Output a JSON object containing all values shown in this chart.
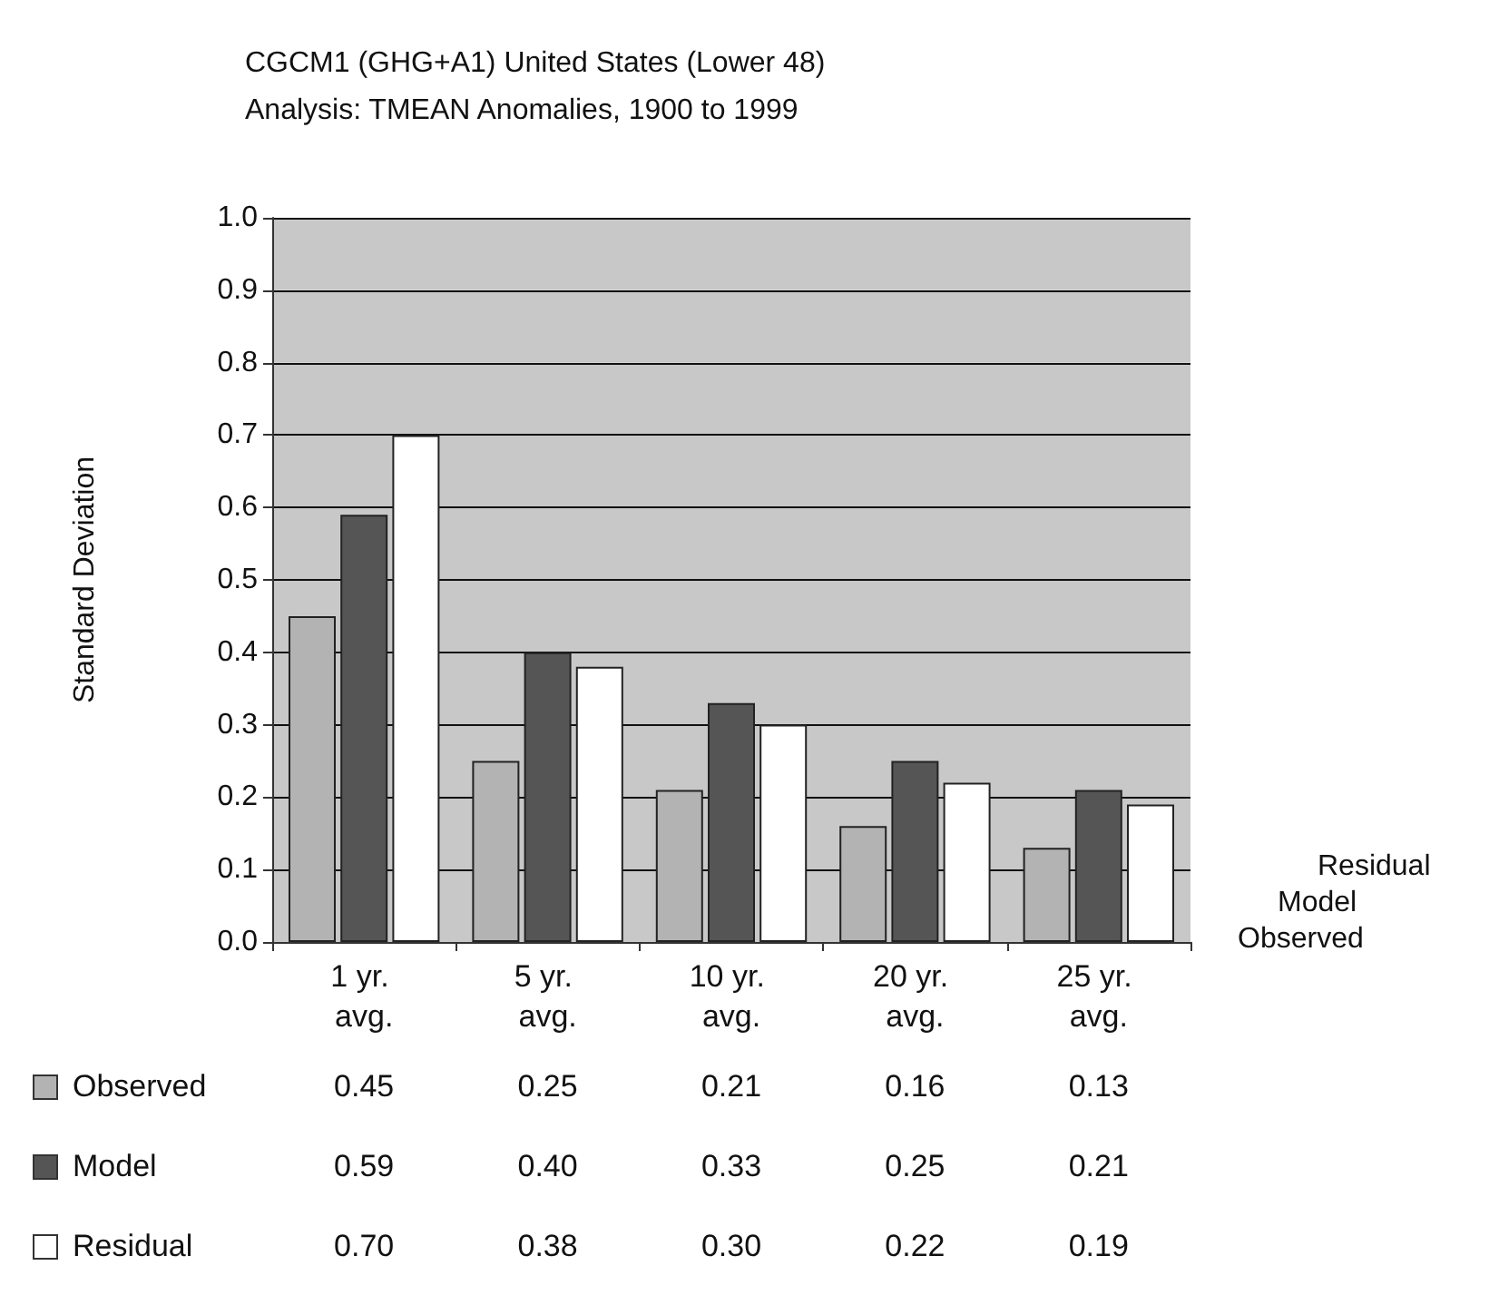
{
  "chart_data": {
    "type": "bar",
    "title": "CGCM1 (GHG+A1) United States (Lower 48)",
    "subtitle": "Analysis: TMEAN Anomalies, 1900 to 1999",
    "ylabel": "Standard Deviation",
    "categories": [
      "1 yr. avg.",
      "5 yr. avg.",
      "10 yr. avg.",
      "20 yr. avg.",
      "25 yr. avg."
    ],
    "series": [
      {
        "name": "Observed",
        "color": "#b3b3b3",
        "values": [
          0.45,
          0.25,
          0.21,
          0.16,
          0.13
        ],
        "value_labels": [
          "0.45",
          "0.25",
          "0.21",
          "0.16",
          "0.13"
        ]
      },
      {
        "name": "Model",
        "color": "#555555",
        "values": [
          0.59,
          0.4,
          0.33,
          0.25,
          0.21
        ],
        "value_labels": [
          "0.59",
          "0.40",
          "0.33",
          "0.25",
          "0.21"
        ]
      },
      {
        "name": "Residual",
        "color": "#ffffff",
        "values": [
          0.7,
          0.38,
          0.3,
          0.22,
          0.19
        ],
        "value_labels": [
          "0.70",
          "0.38",
          "0.30",
          "0.22",
          "0.19"
        ]
      }
    ],
    "ylim": [
      0,
      1
    ],
    "yticks": [
      {
        "value": 0,
        "label": "0.0"
      },
      0.1,
      0.2,
      0.3,
      0.4,
      0.5,
      0.6,
      0.7,
      0.8,
      0.9,
      {
        "value": 1,
        "label": "1.0"
      }
    ],
    "grid": "y",
    "legend": "bottom"
  }
}
